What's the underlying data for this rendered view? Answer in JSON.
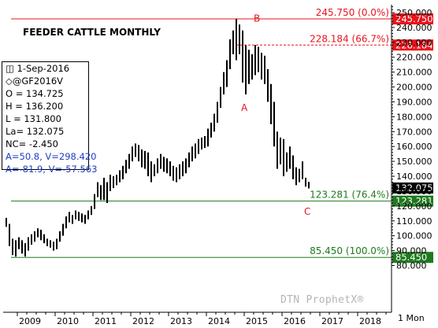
{
  "title": "FEEDER CATTLE MONTHLY",
  "info": {
    "date": "1-Sep-2016",
    "symbol": "@GF2016V",
    "open": "O = 134.725",
    "high": "H = 136.200",
    "low": "L = 131.800",
    "last": "La= 132.075",
    "net_change": "NC= -2.450",
    "a1": "A=50.8, V=298.420",
    "a2": "A=-81.9, V=-57.563"
  },
  "watermark": "DTN ProphetX®",
  "period_label": "1 Mon",
  "colors": {
    "red": "#e8141c",
    "green": "#1f7a1f",
    "blue": "#1f3fbf",
    "price": "#000000",
    "grid": "#d8d8d8"
  },
  "chart_data": {
    "type": "ohlc",
    "interval": "monthly",
    "ylim": [
      80,
      255
    ],
    "y_ticks": [
      80,
      90,
      100,
      110,
      120,
      130,
      140,
      150,
      160,
      170,
      180,
      190,
      200,
      210,
      220,
      230,
      240,
      250
    ],
    "x_ticks": [
      "2009",
      "2010",
      "2011",
      "2012",
      "2013",
      "2014",
      "2015",
      "2016",
      "2017",
      "2018"
    ],
    "last_price": 132.075,
    "levels": [
      {
        "label": "245.750 (0.0%)",
        "value": 245.75,
        "style": "solid",
        "color": "red"
      },
      {
        "label": "228.184 (66.7%)",
        "value": 228.184,
        "style": "dashed",
        "color": "red"
      },
      {
        "label": "123.281 (76.4%)",
        "value": 123.281,
        "style": "solid",
        "color": "green"
      },
      {
        "label": "85.450 (100.0%)",
        "value": 85.45,
        "style": "solid",
        "color": "green"
      }
    ],
    "annotations": [
      {
        "text": "A",
        "x": "2014-12",
        "y": 184
      },
      {
        "text": "B",
        "x": "2015-04",
        "y": 244
      },
      {
        "text": "C",
        "x": "2016-08",
        "y": 114
      }
    ],
    "bars": [
      {
        "t": "2008-09",
        "h": 112,
        "l": 106
      },
      {
        "t": "2008-10",
        "h": 108,
        "l": 93
      },
      {
        "t": "2008-11",
        "h": 98,
        "l": 87
      },
      {
        "t": "2008-12",
        "h": 97,
        "l": 86
      },
      {
        "t": "2009-01",
        "h": 99,
        "l": 91
      },
      {
        "t": "2009-02",
        "h": 97,
        "l": 88
      },
      {
        "t": "2009-03",
        "h": 95,
        "l": 86
      },
      {
        "t": "2009-04",
        "h": 99,
        "l": 90
      },
      {
        "t": "2009-05",
        "h": 101,
        "l": 94
      },
      {
        "t": "2009-06",
        "h": 103,
        "l": 96
      },
      {
        "t": "2009-07",
        "h": 105,
        "l": 99
      },
      {
        "t": "2009-08",
        "h": 104,
        "l": 97
      },
      {
        "t": "2009-09",
        "h": 101,
        "l": 95
      },
      {
        "t": "2009-10",
        "h": 98,
        "l": 93
      },
      {
        "t": "2009-11",
        "h": 97,
        "l": 92
      },
      {
        "t": "2009-12",
        "h": 96,
        "l": 90
      },
      {
        "t": "2010-01",
        "h": 98,
        "l": 91
      },
      {
        "t": "2010-02",
        "h": 103,
        "l": 96
      },
      {
        "t": "2010-03",
        "h": 108,
        "l": 100
      },
      {
        "t": "2010-04",
        "h": 113,
        "l": 105
      },
      {
        "t": "2010-05",
        "h": 116,
        "l": 109
      },
      {
        "t": "2010-06",
        "h": 114,
        "l": 108
      },
      {
        "t": "2010-07",
        "h": 117,
        "l": 111
      },
      {
        "t": "2010-08",
        "h": 116,
        "l": 110
      },
      {
        "t": "2010-09",
        "h": 115,
        "l": 109
      },
      {
        "t": "2010-10",
        "h": 114,
        "l": 108
      },
      {
        "t": "2010-11",
        "h": 117,
        "l": 111
      },
      {
        "t": "2010-12",
        "h": 120,
        "l": 114
      },
      {
        "t": "2011-01",
        "h": 128,
        "l": 118
      },
      {
        "t": "2011-02",
        "h": 136,
        "l": 126
      },
      {
        "t": "2011-03",
        "h": 134,
        "l": 124
      },
      {
        "t": "2011-04",
        "h": 139,
        "l": 124
      },
      {
        "t": "2011-05",
        "h": 136,
        "l": 122
      },
      {
        "t": "2011-06",
        "h": 141,
        "l": 130
      },
      {
        "t": "2011-07",
        "h": 140,
        "l": 132
      },
      {
        "t": "2011-08",
        "h": 141,
        "l": 134
      },
      {
        "t": "2011-09",
        "h": 144,
        "l": 136
      },
      {
        "t": "2011-10",
        "h": 147,
        "l": 138
      },
      {
        "t": "2011-11",
        "h": 151,
        "l": 142
      },
      {
        "t": "2011-12",
        "h": 155,
        "l": 145
      },
      {
        "t": "2012-01",
        "h": 160,
        "l": 150
      },
      {
        "t": "2012-02",
        "h": 162,
        "l": 153
      },
      {
        "t": "2012-03",
        "h": 161,
        "l": 150
      },
      {
        "t": "2012-04",
        "h": 158,
        "l": 146
      },
      {
        "t": "2012-05",
        "h": 157,
        "l": 145
      },
      {
        "t": "2012-06",
        "h": 156,
        "l": 140
      },
      {
        "t": "2012-07",
        "h": 150,
        "l": 136
      },
      {
        "t": "2012-08",
        "h": 148,
        "l": 140
      },
      {
        "t": "2012-09",
        "h": 152,
        "l": 142
      },
      {
        "t": "2012-10",
        "h": 155,
        "l": 145
      },
      {
        "t": "2012-11",
        "h": 153,
        "l": 143
      },
      {
        "t": "2012-12",
        "h": 152,
        "l": 142
      },
      {
        "t": "2013-01",
        "h": 150,
        "l": 140
      },
      {
        "t": "2013-02",
        "h": 147,
        "l": 137
      },
      {
        "t": "2013-03",
        "h": 146,
        "l": 136
      },
      {
        "t": "2013-04",
        "h": 148,
        "l": 138
      },
      {
        "t": "2013-05",
        "h": 150,
        "l": 140
      },
      {
        "t": "2013-06",
        "h": 152,
        "l": 142
      },
      {
        "t": "2013-07",
        "h": 156,
        "l": 146
      },
      {
        "t": "2013-08",
        "h": 160,
        "l": 150
      },
      {
        "t": "2013-09",
        "h": 162,
        "l": 152
      },
      {
        "t": "2013-10",
        "h": 165,
        "l": 155
      },
      {
        "t": "2013-11",
        "h": 166,
        "l": 158
      },
      {
        "t": "2013-12",
        "h": 167,
        "l": 159
      },
      {
        "t": "2014-01",
        "h": 172,
        "l": 160
      },
      {
        "t": "2014-02",
        "h": 176,
        "l": 166
      },
      {
        "t": "2014-03",
        "h": 182,
        "l": 170
      },
      {
        "t": "2014-04",
        "h": 190,
        "l": 176
      },
      {
        "t": "2014-05",
        "h": 200,
        "l": 186
      },
      {
        "t": "2014-06",
        "h": 210,
        "l": 195
      },
      {
        "t": "2014-07",
        "h": 218,
        "l": 200
      },
      {
        "t": "2014-08",
        "h": 232,
        "l": 212
      },
      {
        "t": "2014-09",
        "h": 238,
        "l": 222
      },
      {
        "t": "2014-10",
        "h": 245.75,
        "l": 218
      },
      {
        "t": "2014-11",
        "h": 242,
        "l": 222
      },
      {
        "t": "2014-12",
        "h": 238,
        "l": 203
      },
      {
        "t": "2015-01",
        "h": 228,
        "l": 195
      },
      {
        "t": "2015-02",
        "h": 225,
        "l": 202
      },
      {
        "t": "2015-03",
        "h": 222,
        "l": 205
      },
      {
        "t": "2015-04",
        "h": 228.18,
        "l": 208
      },
      {
        "t": "2015-05",
        "h": 227,
        "l": 210
      },
      {
        "t": "2015-06",
        "h": 223,
        "l": 205
      },
      {
        "t": "2015-07",
        "h": 221,
        "l": 202
      },
      {
        "t": "2015-08",
        "h": 212,
        "l": 190
      },
      {
        "t": "2015-09",
        "h": 202,
        "l": 175
      },
      {
        "t": "2015-10",
        "h": 190,
        "l": 160
      },
      {
        "t": "2015-11",
        "h": 170,
        "l": 145
      },
      {
        "t": "2015-12",
        "h": 166,
        "l": 148
      },
      {
        "t": "2016-01",
        "h": 165,
        "l": 140
      },
      {
        "t": "2016-02",
        "h": 156,
        "l": 143
      },
      {
        "t": "2016-03",
        "h": 160,
        "l": 145
      },
      {
        "t": "2016-04",
        "h": 154,
        "l": 138
      },
      {
        "t": "2016-05",
        "h": 146,
        "l": 134
      },
      {
        "t": "2016-06",
        "h": 145,
        "l": 136
      },
      {
        "t": "2016-07",
        "h": 150,
        "l": 138
      },
      {
        "t": "2016-08",
        "h": 139,
        "l": 133
      },
      {
        "t": "2016-09",
        "h": 136.2,
        "l": 131.8
      }
    ]
  }
}
